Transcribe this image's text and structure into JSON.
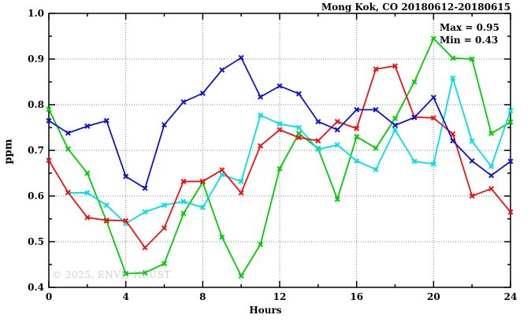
{
  "title": "Mong Kok, CO 20180612-20180615",
  "annotation": {
    "max_label": "Max = 0.95",
    "min_label": "Min = 0.43"
  },
  "watermark": "© 2025, ENVF, HKUST",
  "colors": {
    "frame": "#000000",
    "grid": "#808080",
    "background": "#ffffff"
  },
  "chart_data": {
    "type": "line",
    "title": "Mong Kok, CO 20180612-20180615",
    "xlabel": "Hours",
    "ylabel": "ppm",
    "xlim": [
      0,
      24
    ],
    "ylim": [
      0.4,
      1.0
    ],
    "x_major_ticks": [
      0,
      4,
      8,
      12,
      16,
      20,
      24
    ],
    "x_minor_step": 2,
    "y_major_ticks": [
      0.4,
      0.5,
      0.6,
      0.7,
      0.8,
      0.9,
      1.0
    ],
    "y_minor_step": 0.05,
    "grid": true,
    "legend_position": "none",
    "stat_max": 0.95,
    "stat_min": 0.43,
    "series": [
      {
        "name": "green",
        "color": "#00cc00",
        "x": [
          0,
          1,
          2,
          3,
          4,
          5,
          6,
          7,
          8,
          9,
          10,
          11,
          12,
          13,
          14,
          15,
          16,
          17,
          18,
          19,
          20,
          21,
          22,
          23,
          24
        ],
        "values": [
          0.79,
          0.703,
          0.65,
          0.545,
          0.43,
          0.432,
          0.452,
          0.562,
          0.63,
          0.51,
          0.425,
          0.494,
          0.66,
          0.737,
          0.704,
          0.593,
          0.73,
          0.705,
          0.77,
          0.85,
          0.945,
          0.902,
          0.9,
          0.737,
          0.762
        ]
      },
      {
        "name": "cyan",
        "color": "#00e0e0",
        "x": [
          1,
          2,
          3,
          4,
          5,
          6,
          7,
          8,
          9,
          10,
          11,
          12,
          13,
          14,
          15,
          16,
          17,
          18,
          19,
          20,
          21,
          22,
          23,
          24
        ],
        "values": [
          0.607,
          0.607,
          0.58,
          0.54,
          0.565,
          0.58,
          0.588,
          0.575,
          0.647,
          0.632,
          0.777,
          0.758,
          0.75,
          0.702,
          0.712,
          0.677,
          0.658,
          0.745,
          0.676,
          0.67,
          0.858,
          0.72,
          0.665,
          0.787
        ]
      },
      {
        "name": "red",
        "color": "#ee1111",
        "x": [
          0,
          1,
          2,
          3,
          4,
          5,
          6,
          7,
          8,
          9,
          10,
          11,
          12,
          13,
          14,
          15,
          16,
          17,
          18,
          19,
          20,
          21,
          22,
          23,
          24
        ],
        "values": [
          0.678,
          0.608,
          0.553,
          0.547,
          0.546,
          0.487,
          0.53,
          0.632,
          0.632,
          0.657,
          0.607,
          0.71,
          0.745,
          0.728,
          0.721,
          0.763,
          0.748,
          0.878,
          0.885,
          0.773,
          0.771,
          0.736,
          0.6,
          0.616,
          0.565
        ]
      },
      {
        "name": "blue",
        "color": "#1111cc",
        "x": [
          0,
          1,
          2,
          3,
          4,
          5,
          6,
          7,
          8,
          9,
          10,
          11,
          12,
          13,
          14,
          15,
          16,
          17,
          18,
          19,
          20,
          21,
          22,
          23,
          24
        ],
        "values": [
          0.765,
          0.738,
          0.753,
          0.765,
          0.643,
          0.617,
          0.756,
          0.806,
          0.825,
          0.876,
          0.903,
          0.817,
          0.841,
          0.824,
          0.763,
          0.745,
          0.789,
          0.789,
          0.755,
          0.772,
          0.816,
          0.721,
          0.677,
          0.645,
          0.676
        ]
      }
    ]
  }
}
